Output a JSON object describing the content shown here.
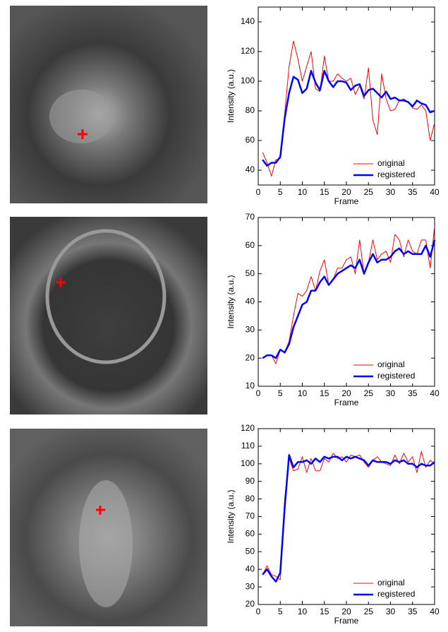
{
  "chart_data": [
    {
      "type": "line",
      "xlabel": "Frame",
      "ylabel": "Intensity (a.u.)",
      "legend": "lower right",
      "xlim": [
        0,
        40
      ],
      "xticks": [
        0,
        5,
        10,
        15,
        20,
        25,
        30,
        35,
        40
      ],
      "ylim": [
        30,
        150
      ],
      "yticks": [
        40,
        60,
        80,
        100,
        120,
        140
      ],
      "x": [
        1,
        2,
        3,
        4,
        5,
        6,
        7,
        8,
        9,
        10,
        11,
        12,
        13,
        14,
        15,
        16,
        17,
        18,
        19,
        20,
        21,
        22,
        23,
        24,
        25,
        26,
        27,
        28,
        29,
        30,
        31,
        32,
        33,
        34,
        35,
        36,
        37,
        38,
        39,
        40
      ],
      "series": [
        {
          "name": "original",
          "color": "#ff0000",
          "line_width": 1,
          "values": [
            52,
            45,
            36,
            47,
            48,
            78,
            110,
            127,
            115,
            100,
            110,
            120,
            95,
            93,
            117,
            100,
            100,
            105,
            102,
            100,
            102,
            91,
            97,
            88,
            109,
            74,
            64,
            105,
            88,
            80,
            81,
            87,
            88,
            86,
            82,
            81,
            84,
            80,
            60,
            72
          ]
        },
        {
          "name": "registered",
          "color": "#0000ff",
          "line_width": 2.5,
          "values": [
            47,
            43,
            45,
            45,
            49,
            75,
            92,
            103,
            101,
            92,
            95,
            107,
            99,
            94,
            107,
            100,
            96,
            100,
            100,
            99,
            94,
            97,
            98,
            90,
            94,
            95,
            92,
            89,
            93,
            88,
            89,
            87,
            87,
            86,
            83,
            87,
            85,
            84,
            79,
            80
          ]
        }
      ]
    },
    {
      "type": "line",
      "xlabel": "Frame",
      "ylabel": "Intensity (a.u.)",
      "legend": "lower right",
      "xlim": [
        0,
        40
      ],
      "xticks": [
        0,
        5,
        10,
        15,
        20,
        25,
        30,
        35,
        40
      ],
      "ylim": [
        10,
        70
      ],
      "yticks": [
        10,
        20,
        30,
        40,
        50,
        60,
        70
      ],
      "x": [
        1,
        2,
        3,
        4,
        5,
        6,
        7,
        8,
        9,
        10,
        11,
        12,
        13,
        14,
        15,
        16,
        17,
        18,
        19,
        20,
        21,
        22,
        23,
        24,
        25,
        26,
        27,
        28,
        29,
        30,
        31,
        32,
        33,
        34,
        35,
        36,
        37,
        38,
        39,
        40
      ],
      "series": [
        {
          "name": "original",
          "color": "#ff0000",
          "line_width": 1,
          "values": [
            20,
            21,
            21,
            18,
            23,
            22,
            26,
            35,
            43,
            42,
            44,
            49,
            44,
            51,
            55,
            46,
            48,
            52,
            52,
            55,
            56,
            50,
            62,
            50,
            54,
            62,
            55,
            57,
            58,
            54,
            64,
            62,
            56,
            62,
            58,
            57,
            62,
            62,
            52,
            67
          ]
        },
        {
          "name": "registered",
          "color": "#0000ff",
          "line_width": 2.5,
          "values": [
            20,
            21,
            21,
            20,
            23,
            22,
            25,
            31,
            35,
            39,
            40,
            44,
            44,
            47,
            49,
            46,
            48,
            50,
            51,
            52,
            53,
            52,
            55,
            50,
            54,
            57,
            54,
            55,
            55,
            56,
            58,
            59,
            57,
            58,
            57,
            57,
            57,
            60,
            56,
            62
          ]
        }
      ]
    },
    {
      "type": "line",
      "xlabel": "Frame",
      "ylabel": "Intensity (a.u.)",
      "legend": "lower right",
      "xlim": [
        0,
        40
      ],
      "xticks": [
        0,
        5,
        10,
        15,
        20,
        25,
        30,
        35,
        40
      ],
      "ylim": [
        20,
        120
      ],
      "yticks": [
        20,
        30,
        40,
        50,
        60,
        70,
        80,
        90,
        100,
        110,
        120
      ],
      "x": [
        1,
        2,
        3,
        4,
        5,
        6,
        7,
        8,
        9,
        10,
        11,
        12,
        13,
        14,
        15,
        16,
        17,
        18,
        19,
        20,
        21,
        22,
        23,
        24,
        25,
        26,
        27,
        28,
        29,
        30,
        31,
        32,
        33,
        34,
        35,
        36,
        37,
        38,
        39,
        40
      ],
      "series": [
        {
          "name": "original",
          "color": "#ff0000",
          "line_width": 1,
          "values": [
            37,
            42,
            37,
            36,
            34,
            80,
            103,
            96,
            97,
            104,
            95,
            103,
            96,
            96,
            103,
            101,
            106,
            103,
            104,
            101,
            105,
            104,
            105,
            101,
            98,
            102,
            104,
            101,
            100,
            99,
            105,
            100,
            106,
            101,
            104,
            95,
            107,
            98,
            102,
            100
          ]
        },
        {
          "name": "registered",
          "color": "#0000ff",
          "line_width": 2.5,
          "values": [
            37,
            40,
            36,
            33,
            38,
            75,
            105,
            98,
            101,
            101,
            102,
            100,
            103,
            101,
            104,
            103,
            104,
            104,
            102,
            104,
            103,
            104,
            103,
            102,
            99,
            102,
            101,
            101,
            101,
            100,
            102,
            101,
            102,
            100,
            100,
            98,
            100,
            99,
            99,
            101
          ]
        }
      ]
    }
  ]
}
